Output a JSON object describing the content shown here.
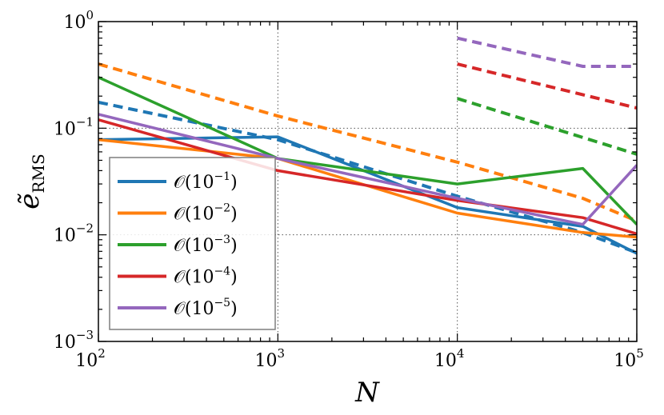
{
  "chart_data": {
    "type": "line",
    "title": "",
    "xlabel": "N",
    "ylabel_main": "ẽ",
    "ylabel_sub": "RMS",
    "xscale": "log",
    "yscale": "log",
    "xlim": [
      100,
      100000
    ],
    "ylim": [
      0.001,
      1
    ],
    "grid": "dotted at major ticks",
    "legend_location": "lower-left",
    "x_ticks": [
      {
        "base": "10",
        "exp": "2"
      },
      {
        "base": "10",
        "exp": "3"
      },
      {
        "base": "10",
        "exp": "4"
      },
      {
        "base": "10",
        "exp": "5"
      }
    ],
    "y_ticks": [
      {
        "base": "10",
        "exp": "−3"
      },
      {
        "base": "10",
        "exp": "−2"
      },
      {
        "base": "10",
        "exp": "−1"
      },
      {
        "base": "10",
        "exp": "0"
      }
    ],
    "series": [
      {
        "name": "O(10^-1)",
        "legend_prefix": "𝒪(10",
        "legend_exp": "−1",
        "legend_suffix": ")",
        "color": "#1f77b4",
        "solid": {
          "x": [
            100,
            1000,
            10000,
            50000,
            100000
          ],
          "y": [
            0.078,
            0.083,
            0.018,
            0.012,
            0.0067
          ]
        },
        "dashed": {
          "x": [
            100,
            1000,
            10000,
            50000,
            100000
          ],
          "y": [
            0.175,
            0.078,
            0.023,
            0.0105,
            0.0068
          ]
        }
      },
      {
        "name": "O(10^-2)",
        "legend_prefix": "𝒪(10",
        "legend_exp": "−2",
        "legend_suffix": ")",
        "color": "#ff7f0e",
        "solid": {
          "x": [
            100,
            1000,
            10000,
            50000,
            100000
          ],
          "y": [
            0.078,
            0.052,
            0.016,
            0.0105,
            0.0095
          ]
        },
        "dashed": {
          "x": [
            100,
            1000,
            10000,
            50000,
            100000
          ],
          "y": [
            0.4,
            0.13,
            0.048,
            0.022,
            0.0135
          ]
        }
      },
      {
        "name": "O(10^-3)",
        "legend_prefix": "𝒪(10",
        "legend_exp": "−3",
        "legend_suffix": ")",
        "color": "#2ca02c",
        "solid": {
          "x": [
            100,
            1000,
            10000,
            50000,
            100000
          ],
          "y": [
            0.3,
            0.052,
            0.03,
            0.042,
            0.0125
          ]
        },
        "dashed": {
          "x": [
            10000,
            100000
          ],
          "y": [
            0.19,
            0.057
          ]
        }
      },
      {
        "name": "O(10^-4)",
        "legend_prefix": "𝒪(10",
        "legend_exp": "−4",
        "legend_suffix": ")",
        "color": "#d62728",
        "solid": {
          "x": [
            100,
            1000,
            10000,
            50000,
            100000
          ],
          "y": [
            0.12,
            0.04,
            0.021,
            0.0145,
            0.0102
          ]
        },
        "dashed": {
          "x": [
            10000,
            100000
          ],
          "y": [
            0.4,
            0.155
          ]
        }
      },
      {
        "name": "O(10^-5)",
        "legend_prefix": "𝒪(10",
        "legend_exp": "−5",
        "legend_suffix": ")",
        "color": "#9467bd",
        "solid": {
          "x": [
            100,
            1000,
            10000,
            50000,
            100000
          ],
          "y": [
            0.135,
            0.052,
            0.022,
            0.0125,
            0.045
          ]
        },
        "dashed": {
          "x": [
            10000,
            50000,
            100000
          ],
          "y": [
            0.7,
            0.38,
            0.38
          ]
        }
      }
    ]
  }
}
